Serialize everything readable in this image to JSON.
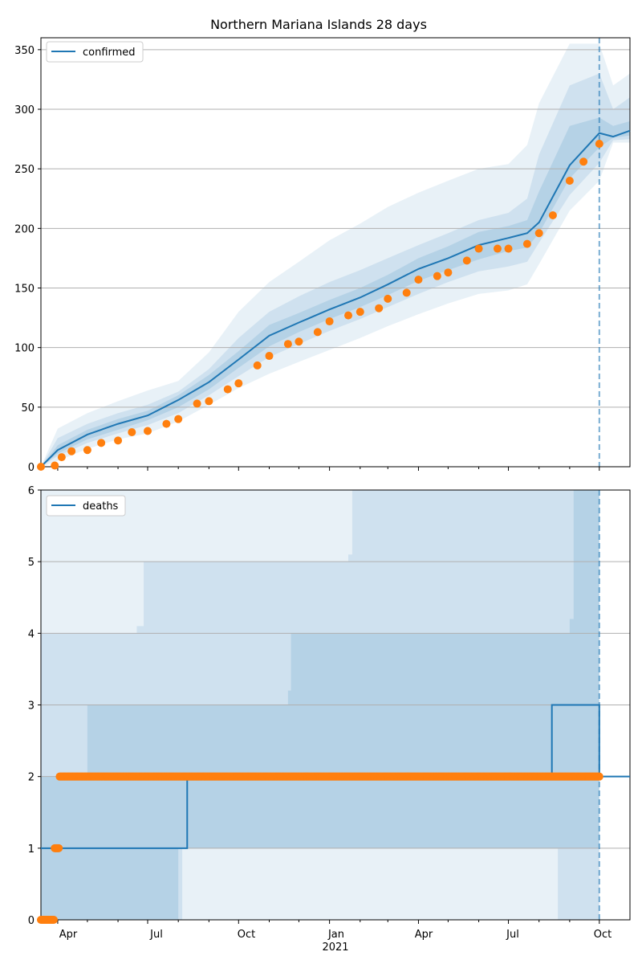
{
  "chart_data": [
    {
      "type": "line",
      "title": "Northern Mariana Islands 28 days",
      "legend": {
        "entries": [
          "confirmed"
        ],
        "placement": "upper-left"
      },
      "ylim": [
        0,
        360
      ],
      "yticks": [
        0,
        50,
        100,
        150,
        200,
        250,
        300,
        350
      ],
      "grid": "y",
      "forecast_start": "2021-10-01",
      "series": [
        {
          "name": "confirmed",
          "role": "model-median",
          "color": "#1f77b4",
          "points": [
            [
              "2020-03-15",
              0
            ],
            [
              "2020-04-01",
              14
            ],
            [
              "2020-05-01",
              27
            ],
            [
              "2020-06-01",
              36
            ],
            [
              "2020-07-01",
              43
            ],
            [
              "2020-08-01",
              56
            ],
            [
              "2020-09-01",
              71
            ],
            [
              "2020-10-01",
              90
            ],
            [
              "2020-11-01",
              110
            ],
            [
              "2020-12-01",
              121
            ],
            [
              "2021-01-01",
              132
            ],
            [
              "2021-02-01",
              142
            ],
            [
              "2021-03-01",
              153
            ],
            [
              "2021-04-01",
              166
            ],
            [
              "2021-05-01",
              175
            ],
            [
              "2021-06-01",
              186
            ],
            [
              "2021-07-01",
              192
            ],
            [
              "2021-07-20",
              196
            ],
            [
              "2021-08-01",
              205
            ],
            [
              "2021-09-01",
              253
            ],
            [
              "2021-10-01",
              280
            ],
            [
              "2021-10-15",
              277
            ],
            [
              "2021-11-01",
              282
            ]
          ]
        },
        {
          "name": "observed",
          "role": "observed-points",
          "color": "#ff7f0e",
          "points": [
            [
              "2020-03-15",
              0
            ],
            [
              "2020-03-29",
              1
            ],
            [
              "2020-04-05",
              8
            ],
            [
              "2020-04-15",
              13
            ],
            [
              "2020-05-01",
              14
            ],
            [
              "2020-05-15",
              20
            ],
            [
              "2020-06-01",
              22
            ],
            [
              "2020-06-15",
              29
            ],
            [
              "2020-07-01",
              30
            ],
            [
              "2020-07-20",
              36
            ],
            [
              "2020-08-01",
              40
            ],
            [
              "2020-08-20",
              53
            ],
            [
              "2020-09-01",
              55
            ],
            [
              "2020-09-20",
              65
            ],
            [
              "2020-10-01",
              70
            ],
            [
              "2020-10-20",
              85
            ],
            [
              "2020-11-01",
              93
            ],
            [
              "2020-11-20",
              103
            ],
            [
              "2020-12-01",
              105
            ],
            [
              "2020-12-20",
              113
            ],
            [
              "2021-01-01",
              122
            ],
            [
              "2021-01-20",
              127
            ],
            [
              "2021-02-01",
              130
            ],
            [
              "2021-02-20",
              133
            ],
            [
              "2021-03-01",
              141
            ],
            [
              "2021-03-20",
              146
            ],
            [
              "2021-04-01",
              157
            ],
            [
              "2021-04-20",
              160
            ],
            [
              "2021-05-01",
              163
            ],
            [
              "2021-05-20",
              173
            ],
            [
              "2021-06-01",
              183
            ],
            [
              "2021-06-20",
              183
            ],
            [
              "2021-07-01",
              183
            ],
            [
              "2021-07-20",
              187
            ],
            [
              "2021-08-01",
              196
            ],
            [
              "2021-08-15",
              211
            ],
            [
              "2021-09-01",
              240
            ],
            [
              "2021-09-15",
              256
            ],
            [
              "2021-10-01",
              271
            ]
          ]
        }
      ],
      "bands": [
        {
          "level": "outer",
          "lower": [
            0,
            5,
            15,
            23,
            28,
            38,
            52,
            66,
            78,
            88,
            98,
            108,
            118,
            128,
            137,
            145,
            148,
            153,
            170,
            215,
            240,
            272,
            272
          ],
          "upper": [
            0,
            32,
            45,
            55,
            64,
            72,
            96,
            130,
            155,
            172,
            190,
            204,
            218,
            230,
            240,
            250,
            254,
            270,
            305,
            355,
            355,
            320,
            330
          ]
        },
        {
          "level": "middle",
          "lower": [
            0,
            9,
            20,
            28,
            35,
            45,
            60,
            76,
            92,
            103,
            114,
            124,
            134,
            145,
            155,
            164,
            168,
            172,
            188,
            228,
            255,
            274,
            275
          ],
          "upper": [
            0,
            24,
            36,
            45,
            52,
            63,
            82,
            108,
            130,
            143,
            155,
            165,
            175,
            186,
            196,
            207,
            213,
            225,
            262,
            320,
            330,
            300,
            310
          ]
        },
        {
          "level": "inner",
          "lower": [
            0,
            11,
            23,
            31,
            39,
            50,
            65,
            83,
            101,
            113,
            124,
            134,
            144,
            156,
            165,
            174,
            181,
            184,
            196,
            242,
            268,
            276,
            278
          ],
          "upper": [
            0,
            18,
            31,
            40,
            47,
            60,
            77,
            97,
            119,
            129,
            140,
            150,
            161,
            175,
            185,
            197,
            202,
            207,
            231,
            286,
            293,
            286,
            290
          ]
        }
      ]
    },
    {
      "type": "line",
      "title": "",
      "legend": {
        "entries": [
          "deaths"
        ],
        "placement": "upper-left"
      },
      "ylim": [
        0,
        6
      ],
      "yticks": [
        0,
        1,
        2,
        3,
        4,
        5,
        6
      ],
      "grid": "y",
      "forecast_start": "2021-10-01",
      "x_tick_labels": [
        "Apr",
        "Jul",
        "Oct",
        "Jan",
        "Apr",
        "Jul",
        "Oct"
      ],
      "x_year_label": "2021",
      "series": [
        {
          "name": "deaths",
          "role": "model-median",
          "color": "#1f77b4",
          "steps": [
            [
              "2020-03-15",
              1
            ],
            [
              "2020-08-10",
              2
            ],
            [
              "2021-08-14",
              3
            ],
            [
              "2021-10-01",
              2
            ],
            [
              "2021-11-01",
              2
            ]
          ]
        },
        {
          "name": "observed",
          "role": "observed-points",
          "color": "#ff7f0e",
          "steps": [
            [
              "2020-03-15",
              0
            ],
            [
              "2020-03-29",
              1
            ],
            [
              "2020-04-03",
              2
            ],
            [
              "2021-10-01",
              2
            ]
          ]
        }
      ],
      "bands": [
        {
          "level": "outer",
          "steps": [
            [
              "2020-03-15",
              0,
              6
            ],
            [
              "2021-10-01",
              2,
              6
            ]
          ]
        },
        {
          "level": "middle",
          "steps": [
            [
              "2020-03-15",
              0,
              4
            ],
            [
              "2020-06-20",
              0,
              4.1
            ],
            [
              "2020-06-27",
              0,
              5
            ],
            [
              "2020-08-05",
              1,
              5
            ],
            [
              "2020-12-20",
              1,
              5
            ],
            [
              "2021-01-20",
              1,
              5.1
            ],
            [
              "2021-01-24",
              1,
              6
            ],
            [
              "2021-08-20",
              0,
              6
            ],
            [
              "2021-10-01",
              0,
              6
            ]
          ]
        },
        {
          "level": "inner",
          "steps": [
            [
              "2020-03-15",
              0,
              2
            ],
            [
              "2020-05-01",
              0,
              3
            ],
            [
              "2020-08-01",
              1,
              3
            ],
            [
              "2020-11-20",
              1,
              3.2
            ],
            [
              "2020-11-23",
              1,
              4
            ],
            [
              "2021-09-01",
              1,
              4.2
            ],
            [
              "2021-09-05",
              1,
              6
            ],
            [
              "2021-10-01",
              1,
              6
            ]
          ]
        }
      ]
    }
  ]
}
